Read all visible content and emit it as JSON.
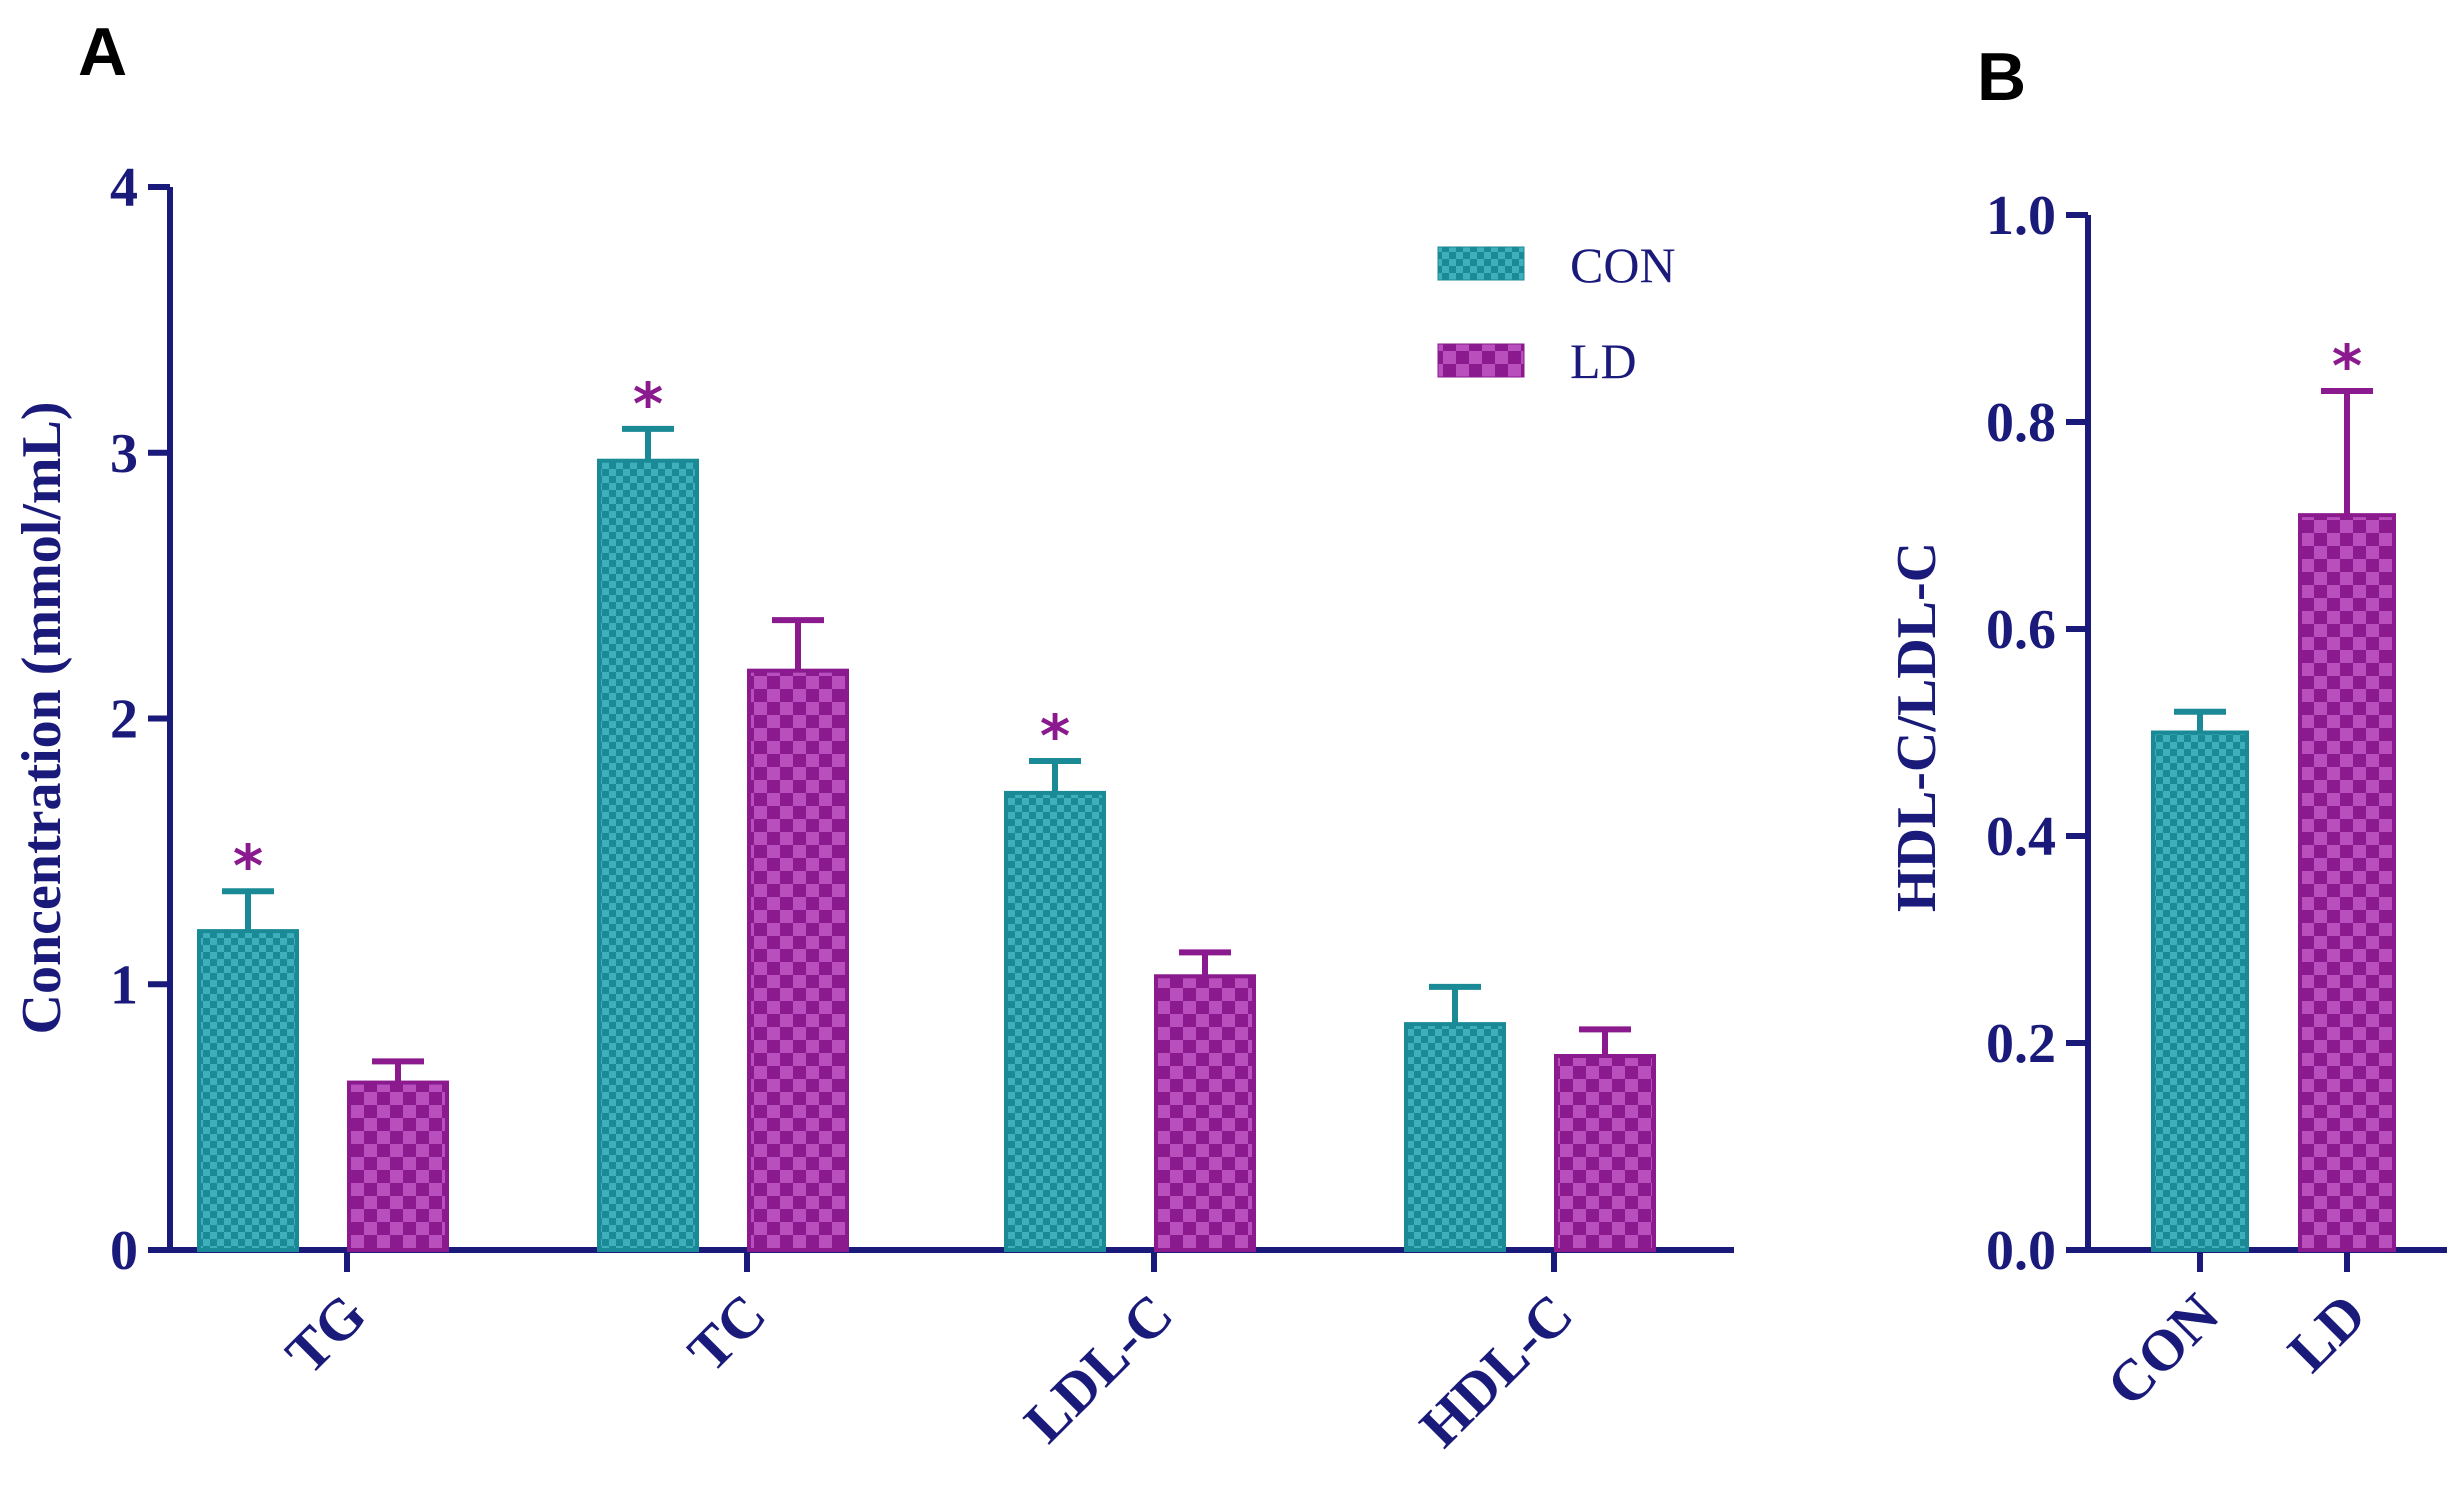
{
  "colors": {
    "axis": "#1a1a7a",
    "con_fill": "#1a8a96",
    "con_pattern": "#3fb0bb",
    "ld_fill": "#8a1a8e",
    "ld_pattern": "#b84fbc",
    "star": "#8a1a8e"
  },
  "chart_data": [
    {
      "panel": "A",
      "type": "bar",
      "title": "",
      "ylabel": "Concentration (mmol/mL)",
      "xlabel": "",
      "ylim": [
        0,
        4
      ],
      "yticks": [
        "0",
        "1",
        "2",
        "3",
        "4"
      ],
      "categories": [
        "TG",
        "TC",
        "LDL-C",
        "HDL-C"
      ],
      "series": [
        {
          "name": "CON",
          "values": [
            1.2,
            2.97,
            1.72,
            0.85
          ],
          "errors": [
            0.15,
            0.12,
            0.12,
            0.14
          ],
          "significant": [
            true,
            true,
            true,
            false
          ]
        },
        {
          "name": "LD",
          "values": [
            0.63,
            2.18,
            1.03,
            0.73
          ],
          "errors": [
            0.08,
            0.19,
            0.09,
            0.1
          ],
          "significant": [
            false,
            false,
            false,
            false
          ]
        }
      ],
      "legend": {
        "position": "top-right",
        "entries": [
          "CON",
          "LD"
        ]
      },
      "significance_marker": "*"
    },
    {
      "panel": "B",
      "type": "bar",
      "title": "",
      "ylabel": "HDL-C/LDL-C",
      "xlabel": "",
      "ylim": [
        0,
        1
      ],
      "yticks": [
        "0.0",
        "0.2",
        "0.4",
        "0.6",
        "0.8",
        "1.0"
      ],
      "categories": [
        "CON",
        "LD"
      ],
      "values": [
        0.5,
        0.71
      ],
      "errors": [
        0.02,
        0.12
      ],
      "significant": [
        false,
        true
      ],
      "significance_marker": "*"
    }
  ]
}
